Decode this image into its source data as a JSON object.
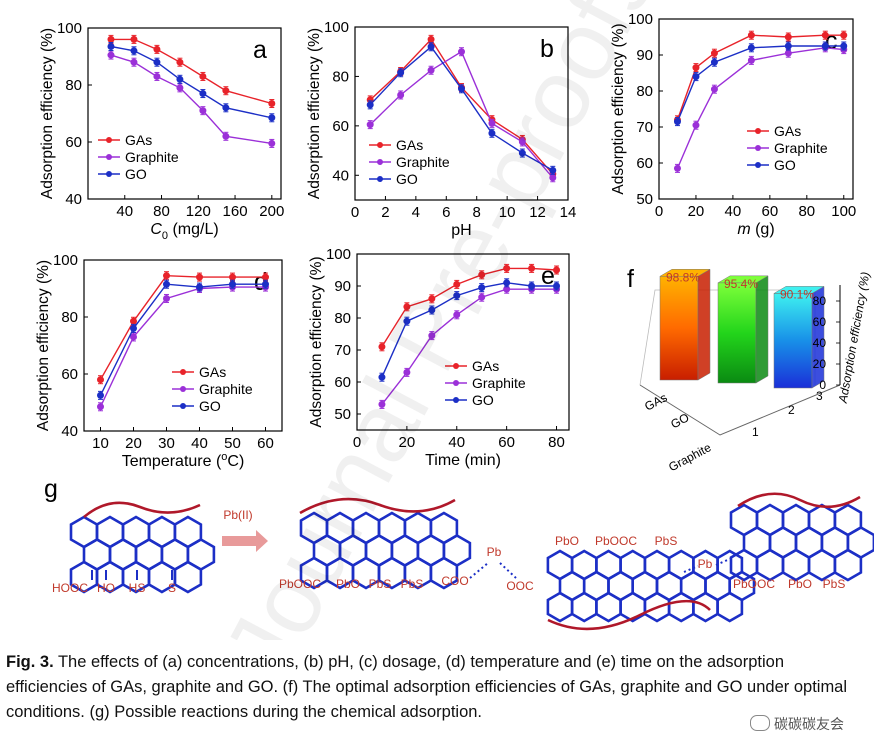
{
  "colors": {
    "gas": "#e8232a",
    "graphite": "#9b30d8",
    "go": "#1c2fc6",
    "chem_bond": "#1c2fc6",
    "chem_edge": "#b0182a",
    "chem_label": "#c0392b"
  },
  "legend": [
    "GAs",
    "Graphite",
    "GO"
  ],
  "panels": [
    {
      "id": "a",
      "label": "a",
      "xlabel": "C",
      "xlabel_sub": "0",
      "xlabel_rest": " (mg/L)",
      "ylabel": "Adsorption efficiency (%)",
      "xlim": [
        0,
        210
      ],
      "ylim": [
        40,
        100
      ],
      "xticks": [
        40,
        80,
        120,
        160,
        200
      ],
      "yticks": [
        40,
        60,
        80,
        100
      ],
      "legend_pos": "bottom-left"
    },
    {
      "id": "b",
      "label": "b",
      "xlabel": "pH",
      "ylabel": "Adsorption efficiency (%)",
      "xlim": [
        0,
        14
      ],
      "ylim": [
        30,
        100
      ],
      "xticks": [
        0,
        2,
        4,
        6,
        8,
        10,
        12,
        14
      ],
      "yticks": [
        40,
        60,
        80,
        100
      ],
      "legend_pos": "center-left"
    },
    {
      "id": "c",
      "label": "c",
      "xlabel": "m",
      "xlabel_rest": " (g)",
      "ylabel": "Adsorption efficiency (%)",
      "xlim": [
        0,
        105
      ],
      "ylim": [
        50,
        100
      ],
      "xticks": [
        0,
        20,
        40,
        60,
        80,
        100
      ],
      "yticks": [
        50,
        60,
        70,
        80,
        90,
        100
      ],
      "legend_pos": "center-right"
    },
    {
      "id": "d",
      "label": "d",
      "xlabel": "Temperature (",
      "xlabel_sup": "o",
      "xlabel_rest": "C)",
      "ylabel": "Adsorption efficiency (%)",
      "xlim": [
        5,
        65
      ],
      "ylim": [
        40,
        100
      ],
      "xticks": [
        10,
        20,
        30,
        40,
        50,
        60
      ],
      "yticks": [
        40,
        60,
        80,
        100
      ],
      "legend_pos": "center-right"
    },
    {
      "id": "e",
      "label": "e",
      "xlabel": "Time (min)",
      "ylabel": "Adsorption efficiency (%)",
      "xlim": [
        0,
        85
      ],
      "ylim": [
        45,
        100
      ],
      "xticks": [
        0,
        20,
        40,
        60,
        80
      ],
      "yticks": [
        50,
        60,
        70,
        80,
        90,
        100
      ],
      "legend_pos": "center-right"
    }
  ],
  "chart_data": [
    {
      "type": "line",
      "panel": "a",
      "x": [
        25,
        50,
        75,
        100,
        125,
        150,
        200
      ],
      "series": [
        {
          "name": "GAs",
          "values": [
            96,
            96,
            92.5,
            88,
            83,
            78,
            73.5
          ]
        },
        {
          "name": "Graphite",
          "values": [
            90.5,
            88,
            83,
            79,
            71,
            62,
            59.5
          ]
        },
        {
          "name": "GO",
          "values": [
            93.5,
            92,
            88,
            82,
            77,
            72,
            68.5
          ]
        }
      ]
    },
    {
      "type": "line",
      "panel": "b",
      "x": [
        1,
        3,
        5,
        7,
        9,
        11,
        13
      ],
      "series": [
        {
          "name": "GAs",
          "values": [
            70.5,
            82,
            95,
            75.5,
            62.5,
            54.5,
            40.5
          ]
        },
        {
          "name": "Graphite",
          "values": [
            60.5,
            72.5,
            82.5,
            90,
            61,
            53.5,
            39
          ]
        },
        {
          "name": "GO",
          "values": [
            68.5,
            81.5,
            92,
            75,
            57,
            49,
            42
          ]
        }
      ]
    },
    {
      "type": "line",
      "panel": "c",
      "x": [
        10,
        20,
        30,
        50,
        70,
        90,
        100
      ],
      "series": [
        {
          "name": "GAs",
          "values": [
            72,
            86.5,
            90.5,
            95.5,
            95,
            95.5,
            95.5
          ]
        },
        {
          "name": "Graphite",
          "values": [
            58.5,
            70.5,
            80.5,
            88.5,
            90.5,
            92,
            91.5
          ]
        },
        {
          "name": "GO",
          "values": [
            71.5,
            84,
            88,
            92,
            92.5,
            92.5,
            92.5
          ]
        }
      ]
    },
    {
      "type": "line",
      "panel": "d",
      "x": [
        10,
        20,
        30,
        40,
        50,
        60
      ],
      "series": [
        {
          "name": "GAs",
          "values": [
            58,
            78.5,
            94.5,
            94,
            94,
            94
          ]
        },
        {
          "name": "Graphite",
          "values": [
            48.5,
            73,
            86.5,
            90,
            90.5,
            90.5
          ]
        },
        {
          "name": "GO",
          "values": [
            52.5,
            76,
            91.5,
            90.5,
            91.5,
            91.5
          ]
        }
      ]
    },
    {
      "type": "line",
      "panel": "e",
      "x": [
        10,
        20,
        30,
        40,
        50,
        60,
        70,
        80
      ],
      "series": [
        {
          "name": "GAs",
          "values": [
            71,
            83.5,
            86,
            90.5,
            93.5,
            95.5,
            95.5,
            95
          ]
        },
        {
          "name": "Graphite",
          "values": [
            53,
            63,
            74.5,
            81,
            86.5,
            89,
            89,
            89
          ]
        },
        {
          "name": "GO",
          "values": [
            61.5,
            79,
            82.5,
            87,
            89.5,
            91,
            90,
            90
          ]
        }
      ]
    },
    {
      "type": "bar",
      "panel": "f",
      "label": "f",
      "categories": [
        "GAs",
        "GO",
        "Graphite"
      ],
      "values": [
        98.8,
        95.4,
        90.1
      ],
      "data_labels": [
        "98.8%",
        "95.4%",
        "90.1%"
      ],
      "ylabel": "Adsorption efficiency (%)",
      "zlim": [
        0,
        100
      ],
      "zticks": [
        0,
        20,
        40,
        60,
        80
      ],
      "depth_ticks": [
        1,
        2,
        3
      ]
    }
  ],
  "scheme": {
    "label": "g",
    "reagent": "Pb(II)",
    "mol1_groups": [
      "HOOC",
      "HO",
      "HS",
      "S"
    ],
    "mol2_groups": [
      "PbOOC",
      "PbO",
      "PbS",
      "PbS",
      "COO"
    ],
    "bridge_pb_1": "Pb",
    "bridge_ooc": "OOC",
    "mol3_groups": [
      "PbO",
      "PbOOC",
      "PbS"
    ],
    "bridge_pb_2": "Pb",
    "mol4_groups": [
      "PbOOC",
      "PbO",
      "PbS"
    ]
  },
  "caption": {
    "label": "Fig. 3.",
    "text": " The effects of (a) concentrations, (b) pH, (c) dosage, (d) temperature and (e) time on the adsorption efficiencies of GAs, graphite and GO. (f) The optimal adsorption efficiencies of GAs, graphite and GO under optimal conditions. (g) Possible reactions during the chemical adsorption."
  },
  "watermark": {
    "text": "Journal Pre-proofs"
  },
  "wechat_tag": "碳碳碳友会"
}
